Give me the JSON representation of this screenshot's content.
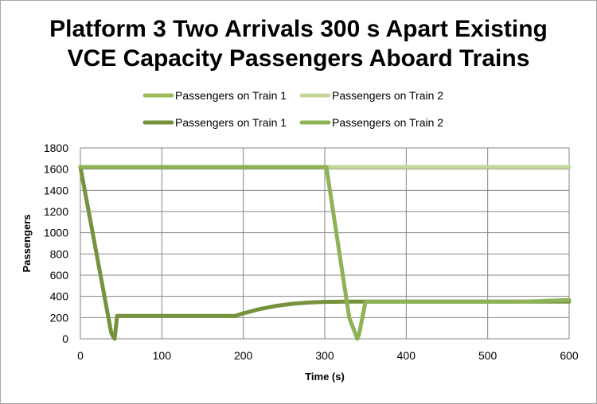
{
  "chart_data": {
    "type": "line",
    "title_line1": "Platform 3 Two Arrivals 300 s Apart Existing",
    "title_line2": "VCE Capacity Passengers Aboard Trains",
    "xlabel": "Time (s)",
    "ylabel": "Passengers",
    "xlim": [
      0,
      600
    ],
    "ylim": [
      0,
      1800
    ],
    "xticks": [
      "0",
      "100",
      "200",
      "300",
      "400",
      "500",
      "600"
    ],
    "yticks": [
      "0",
      "200",
      "400",
      "600",
      "800",
      "1000",
      "1200",
      "1400",
      "1600",
      "1800"
    ],
    "grid": true,
    "legend_position": "top",
    "series": [
      {
        "name": "Passengers on Train 1",
        "color": "#9bbb59",
        "width": 5,
        "x": [
          0,
          300,
          600
        ],
        "y": [
          1620,
          1620,
          1620
        ]
      },
      {
        "name": "Passengers on Train 2",
        "color": "#c4d79b",
        "width": 5,
        "x": [
          0,
          600
        ],
        "y": [
          1620,
          1620
        ]
      },
      {
        "name": "Passengers on Train 1",
        "color": "#76923c",
        "width": 5,
        "x": [
          0,
          38,
          42,
          45,
          60,
          100,
          150,
          190,
          200,
          220,
          240,
          260,
          280,
          300,
          330,
          400,
          500,
          600
        ],
        "y": [
          1620,
          50,
          0,
          215,
          215,
          215,
          215,
          215,
          240,
          280,
          310,
          330,
          342,
          348,
          350,
          350,
          350,
          350
        ]
      },
      {
        "name": "Passengers on Train 2",
        "color": "#8db356",
        "width": 5,
        "x": [
          0,
          300,
          302,
          330,
          340,
          342,
          350,
          400,
          450,
          500,
          550,
          600
        ],
        "y": [
          1620,
          1620,
          1620,
          200,
          0,
          40,
          350,
          350,
          350,
          350,
          352,
          365
        ]
      }
    ]
  }
}
